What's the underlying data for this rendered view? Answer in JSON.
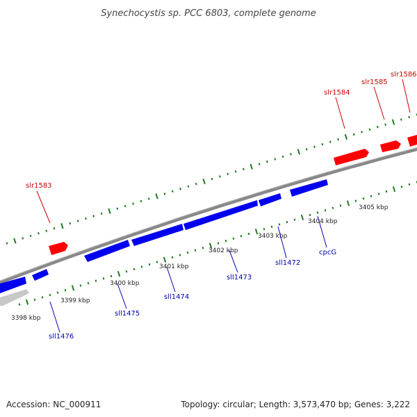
{
  "title": "Synechocystis sp. PCC 6803, complete genome",
  "footer": {
    "accession": "Accession: NC_000911",
    "summary": "Topology: circular; Length: 3,573,470 bp; Genes: 3,222"
  },
  "colors": {
    "forward": "#ff0000",
    "reverse": "#0000ee",
    "other": "#c8c8c8",
    "backbone": "#888888",
    "ticks": "#1f7a1f",
    "forward_label": "#cc0000",
    "reverse_label": "#0000aa"
  },
  "position_labels": [
    {
      "kbp": 3398,
      "label": "3398 kbp"
    },
    {
      "kbp": 3399,
      "label": "3399 kbp"
    },
    {
      "kbp": 3400,
      "label": "3400 kbp"
    },
    {
      "kbp": 3401,
      "label": "3401 kbp"
    },
    {
      "kbp": 3402,
      "label": "3402 kbp"
    },
    {
      "kbp": 3403,
      "label": "3403 kbp"
    },
    {
      "kbp": 3404,
      "label": "3404 kbp"
    },
    {
      "kbp": 3405,
      "label": "3405 kbp"
    }
  ],
  "genes_forward": [
    {
      "name": "slr1583"
    },
    {
      "name": "slr1584"
    },
    {
      "name": "slr1585"
    },
    {
      "name": "slr1586"
    }
  ],
  "genes_reverse": [
    {
      "name": "sll1476"
    },
    {
      "name": "sll1475"
    },
    {
      "name": "sll1474"
    },
    {
      "name": "sll1473"
    },
    {
      "name": "sll1472"
    },
    {
      "name": "cpcG"
    }
  ]
}
